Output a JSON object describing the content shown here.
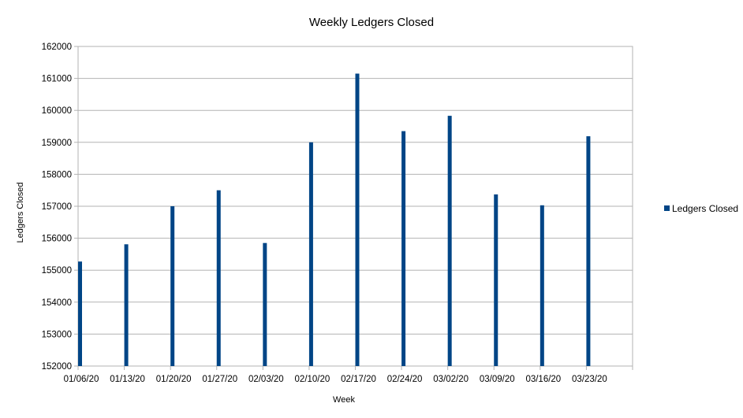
{
  "chart_data": {
    "type": "bar",
    "title": "Weekly Ledgers Closed",
    "xlabel": "Week",
    "ylabel": "Ledgers Closed",
    "categories": [
      "01/06/20",
      "01/13/20",
      "01/20/20",
      "01/27/20",
      "02/03/20",
      "02/10/20",
      "02/17/20",
      "02/24/20",
      "03/02/20",
      "03/09/20",
      "03/16/20",
      "03/23/20"
    ],
    "series": [
      {
        "name": "Ledgers Closed",
        "color": "#004586",
        "values": [
          155270,
          155810,
          157000,
          157500,
          155850,
          159000,
          161150,
          159350,
          159830,
          157370,
          157030,
          159190
        ]
      }
    ],
    "ylim": [
      152000,
      162000
    ],
    "yticks": [
      "152000",
      "153000",
      "154000",
      "155000",
      "156000",
      "157000",
      "158000",
      "159000",
      "160000",
      "161000",
      "162000"
    ],
    "grid": true,
    "legend": "right"
  }
}
